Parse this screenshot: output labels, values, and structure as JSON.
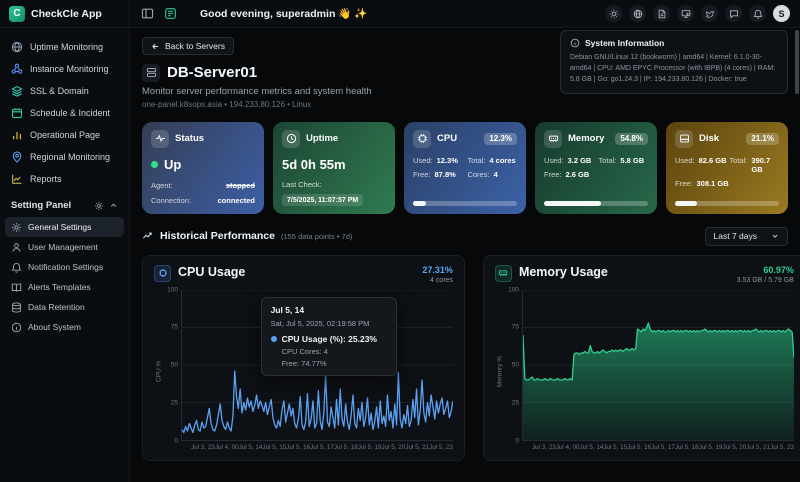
{
  "app": {
    "name": "CheckCle App",
    "logo_letter": "C"
  },
  "sidebar": {
    "items": [
      {
        "label": "Uptime Monitoring"
      },
      {
        "label": "Instance Monitoring"
      },
      {
        "label": "SSL & Domain"
      },
      {
        "label": "Schedule & Incident"
      },
      {
        "label": "Operational Page"
      },
      {
        "label": "Regional Monitoring"
      },
      {
        "label": "Reports"
      }
    ],
    "settings_panel_label": "Setting Panel",
    "settings_items": [
      {
        "label": "General Settings"
      },
      {
        "label": "User Management"
      },
      {
        "label": "Notification Settings"
      },
      {
        "label": "Alerts Templates"
      },
      {
        "label": "Data Retention"
      },
      {
        "label": "About System"
      }
    ]
  },
  "header": {
    "greeting": "Good evening, superadmin 👋 ✨",
    "avatar_initial": "S"
  },
  "server": {
    "back_label": "Back to Servers",
    "name": "DB-Server01",
    "subtitle": "Monitor server performance metrics and system health",
    "meta": "one-panel.k8sops.asia • 194.233.80.126 • Linux"
  },
  "system_info": {
    "title": "System Information",
    "details": "Debian GNU/Linux 12 (bookworm) | amd64 | Kernel: 6.1.0-30-amd64 | CPU: AMD EPYC Processor (with IBPB) (4 cores) | RAM: 5.8 GB | Go: go1.24.3 | IP: 194.233.80.126 | Docker: true"
  },
  "cards": {
    "status": {
      "title": "Status",
      "state": "Up",
      "agent_label": "Agent:",
      "agent_value": "stopped",
      "connection_label": "Connection:",
      "connection_value": "connected"
    },
    "uptime": {
      "title": "Uptime",
      "value": "5d 0h 55m",
      "last_check_label": "Last Check:",
      "last_check_value": "7/5/2025, 11:07:57 PM"
    },
    "cpu": {
      "title": "CPU",
      "badge": "12.3%",
      "used_label": "Used:",
      "used": "12.3%",
      "total_label": "Total:",
      "total": "4 cores",
      "free_label": "Free:",
      "free": "87.8%",
      "cores_label": "Cores:",
      "cores": "4",
      "progress_pct": 12.3
    },
    "memory": {
      "title": "Memory",
      "badge": "54.8%",
      "used_label": "Used:",
      "used": "3.2 GB",
      "total_label": "Total:",
      "total": "5.8 GB",
      "free_label": "Free:",
      "free": "2.6 GB",
      "progress_pct": 54.8
    },
    "disk": {
      "title": "Disk",
      "badge": "21.1%",
      "used_label": "Used:",
      "used": "82.6 GB",
      "total_label": "Total:",
      "total": "390.7 GB",
      "free_label": "Free:",
      "free": "308.1 GB",
      "progress_pct": 21.1
    }
  },
  "history": {
    "title": "Historical Performance",
    "meta": "(155 data points • 7d)",
    "range_label": "Last 7 days"
  },
  "chart_data": [
    {
      "type": "line",
      "title": "CPU Usage",
      "value_label": "27.31%",
      "sub_label": "4 cores",
      "ylabel": "CPU %",
      "ylim": [
        0,
        100
      ],
      "yticks": [
        0,
        25,
        50,
        75,
        100
      ],
      "color": "#5ba2f5",
      "legend": "CPU Usage (%)",
      "x_labels": [
        "Jul 3, 23",
        "Jul 4, 00",
        "Jul 5, 14",
        "Jul 5, 15",
        "Jul 5, 16",
        "Jul 5, 17",
        "Jul 5, 18",
        "Jul 5, 19",
        "Jul 5, 20",
        "Jul 5, 21",
        "Jul 5, 23"
      ],
      "values": [
        7,
        5,
        9,
        6,
        11,
        8,
        5,
        10,
        13,
        7,
        6,
        12,
        8,
        9,
        15,
        21,
        11,
        7,
        6,
        10,
        17,
        24,
        13,
        9,
        7,
        12,
        8,
        6,
        16,
        46,
        29,
        21,
        34,
        18,
        25,
        20,
        28,
        22,
        26,
        19,
        23,
        30,
        21,
        26,
        23,
        19,
        25,
        17,
        22,
        27,
        15,
        10,
        8,
        13,
        9,
        20,
        26,
        12,
        18,
        24,
        16,
        21,
        11,
        8,
        14,
        29,
        10,
        7,
        12,
        31,
        9,
        14,
        26,
        8,
        11,
        33,
        13,
        7,
        18,
        44,
        12,
        9,
        22,
        15,
        8,
        27,
        10,
        34,
        14,
        9,
        24,
        12,
        7,
        16,
        30,
        11,
        8,
        21,
        13,
        25,
        9,
        15,
        28,
        10,
        18,
        7,
        12,
        22,
        8,
        26,
        11,
        16,
        9,
        30,
        13,
        19,
        8,
        24,
        10,
        45,
        14,
        8,
        17,
        11,
        23,
        9,
        13,
        27,
        15,
        34,
        10,
        20,
        40,
        18,
        12,
        25,
        16,
        30,
        22,
        14,
        26,
        18,
        24,
        28,
        17,
        21,
        26,
        15,
        19,
        26
      ],
      "tooltip": {
        "title": "Jul 5, 14",
        "date": "Sat, Jul 5, 2025, 02:19:58 PM",
        "main": "CPU Usage (%): 25.23%",
        "line2": "CPU Cores: 4",
        "line3": "Free: 74.77%"
      }
    },
    {
      "type": "area",
      "title": "Memory Usage",
      "value_label": "60.97%",
      "sub_label": "3.53 GB / 5.79 GB",
      "ylabel": "Memory %",
      "ylim": [
        0,
        100
      ],
      "yticks": [
        0,
        25,
        50,
        75,
        100
      ],
      "color": "#2fd08f",
      "legend": "Memory Usage (%)",
      "x_labels": [
        "Jul 3, 23",
        "Jul 4, 00",
        "Jul 5, 14",
        "Jul 5, 15",
        "Jul 5, 16",
        "Jul 5, 17",
        "Jul 5, 18",
        "Jul 5, 19",
        "Jul 5, 20",
        "Jul 5, 21",
        "Jul 5, 23"
      ],
      "values": [
        70,
        41,
        40,
        40,
        41,
        42,
        40,
        40,
        41,
        40,
        40,
        40,
        41,
        40,
        40,
        41,
        40,
        40,
        40,
        41,
        40,
        40,
        40,
        41,
        40,
        40,
        41,
        40,
        57,
        58,
        58,
        57,
        58,
        58,
        59,
        58,
        58,
        63,
        59,
        58,
        58,
        59,
        58,
        59,
        60,
        59,
        58,
        59,
        59,
        60,
        59,
        60,
        59,
        60,
        60,
        59,
        60,
        61,
        60,
        60,
        61,
        60,
        61,
        74,
        73,
        72,
        74,
        73,
        75,
        78,
        74,
        72,
        73,
        72,
        73,
        73,
        72,
        73,
        72,
        72,
        73,
        72,
        73,
        73,
        72,
        73,
        72,
        73,
        72,
        73,
        73,
        72,
        73,
        72,
        73,
        72,
        73,
        72,
        73,
        73,
        74,
        73,
        72,
        73,
        72,
        73,
        73,
        72,
        73,
        72,
        73,
        72,
        73,
        73,
        72,
        73,
        72,
        73,
        72,
        73,
        73,
        72,
        73,
        72,
        73,
        72,
        73,
        73,
        74,
        73,
        72,
        73,
        72,
        73,
        73,
        72,
        73,
        72,
        73,
        72,
        73,
        73,
        72,
        73,
        72,
        73,
        74,
        73,
        72,
        55
      ]
    }
  ]
}
